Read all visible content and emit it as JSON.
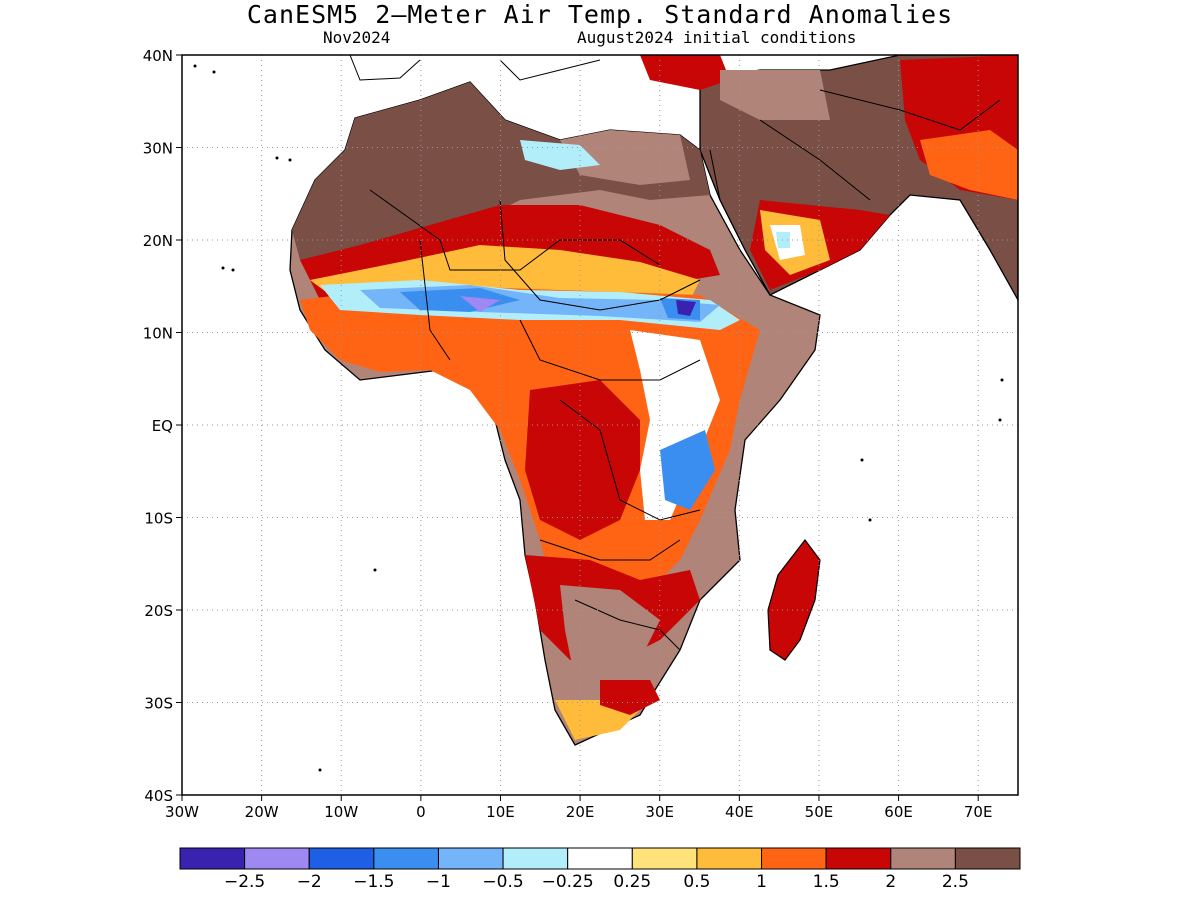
{
  "title": "CanESM5 2—Meter Air Temp. Standard Anomalies",
  "subtitle_left": "Nov2024",
  "subtitle_right": "August2024 initial conditions",
  "map": {
    "lon_range": [
      -30,
      75
    ],
    "lat_range": [
      -40,
      40
    ],
    "lon_ticks": [
      {
        "value": -30,
        "label": "30W"
      },
      {
        "value": -20,
        "label": "20W"
      },
      {
        "value": -10,
        "label": "10W"
      },
      {
        "value": 0,
        "label": "0"
      },
      {
        "value": 10,
        "label": "10E"
      },
      {
        "value": 20,
        "label": "20E"
      },
      {
        "value": 30,
        "label": "30E"
      },
      {
        "value": 40,
        "label": "40E"
      },
      {
        "value": 50,
        "label": "50E"
      },
      {
        "value": 60,
        "label": "60E"
      },
      {
        "value": 70,
        "label": "70E"
      }
    ],
    "lat_ticks": [
      {
        "value": 40,
        "label": "40N"
      },
      {
        "value": 30,
        "label": "30N"
      },
      {
        "value": 20,
        "label": "20N"
      },
      {
        "value": 10,
        "label": "10N"
      },
      {
        "value": 0,
        "label": "EQ"
      },
      {
        "value": -10,
        "label": "10S"
      },
      {
        "value": -20,
        "label": "20S"
      },
      {
        "value": -30,
        "label": "30S"
      },
      {
        "value": -40,
        "label": "40S"
      }
    ],
    "grid": "dotted"
  },
  "legend": {
    "colors": [
      "#3a22b0",
      "#9e88f2",
      "#1f5fe6",
      "#3a8ef0",
      "#74b4f8",
      "#b2eefa",
      "#ffffff",
      "#ffe27a",
      "#ffbc3a",
      "#ff6414",
      "#c80606",
      "#b08478",
      "#7a4f45"
    ],
    "labels": [
      "−2.5",
      "−2",
      "−1.5",
      "−1",
      "−0.5",
      "−0.25",
      "0.25",
      "0.5",
      "1",
      "1.5",
      "2",
      "2.5"
    ]
  }
}
